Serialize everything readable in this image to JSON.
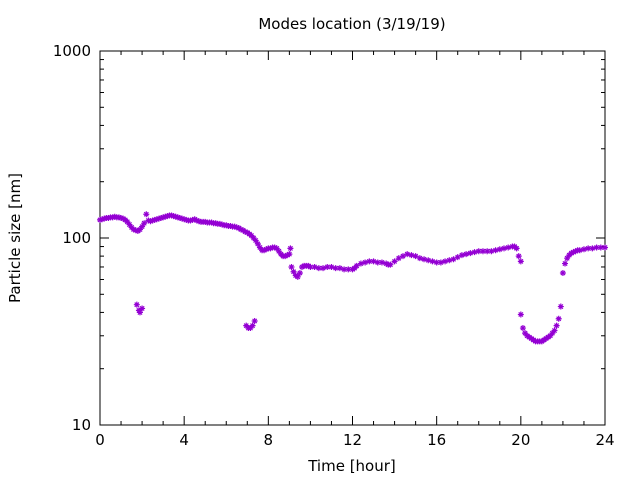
{
  "chart_data": {
    "type": "scatter",
    "title": "Modes location (3/19/19)",
    "xlabel": "Time [hour]",
    "ylabel": "Particle size [nm]",
    "xlim": [
      0,
      24
    ],
    "ylim": [
      10,
      1000
    ],
    "y_scale": "log",
    "grid": false,
    "legend": "none",
    "series_color": "#9400d3",
    "x_ticks": [
      0,
      4,
      8,
      12,
      16,
      20,
      24
    ],
    "x_tick_labels": [
      "0",
      "4",
      "8",
      "12",
      "16",
      "20",
      "24"
    ],
    "y_ticks": [
      10,
      100,
      1000
    ],
    "y_tick_labels": [
      "10",
      "100",
      "1000"
    ],
    "series": [
      {
        "points": [
          [
            0.0,
            125
          ],
          [
            0.1,
            126
          ],
          [
            0.2,
            127
          ],
          [
            0.3,
            128
          ],
          [
            0.4,
            128
          ],
          [
            0.5,
            129
          ],
          [
            0.6,
            129
          ],
          [
            0.7,
            130
          ],
          [
            0.8,
            129
          ],
          [
            0.9,
            129
          ],
          [
            1.0,
            128
          ],
          [
            1.1,
            127
          ],
          [
            1.2,
            125
          ],
          [
            1.3,
            122
          ],
          [
            1.4,
            118
          ],
          [
            1.5,
            114
          ],
          [
            1.6,
            111
          ],
          [
            1.7,
            110
          ],
          [
            1.8,
            109
          ],
          [
            1.9,
            111
          ],
          [
            2.0,
            115
          ],
          [
            2.1,
            120
          ],
          [
            2.2,
            134
          ],
          [
            2.3,
            124
          ],
          [
            2.4,
            123
          ],
          [
            2.5,
            124
          ],
          [
            2.6,
            125
          ],
          [
            2.7,
            126
          ],
          [
            2.8,
            127
          ],
          [
            2.9,
            128
          ],
          [
            3.0,
            129
          ],
          [
            3.1,
            130
          ],
          [
            3.2,
            131
          ],
          [
            3.3,
            132
          ],
          [
            3.4,
            132
          ],
          [
            3.5,
            131
          ],
          [
            3.6,
            130
          ],
          [
            3.7,
            129
          ],
          [
            3.8,
            128
          ],
          [
            3.9,
            127
          ],
          [
            4.0,
            126
          ],
          [
            4.1,
            125
          ],
          [
            4.2,
            124
          ],
          [
            4.3,
            124
          ],
          [
            4.4,
            125
          ],
          [
            4.5,
            126
          ],
          [
            4.6,
            124
          ],
          [
            4.7,
            123
          ],
          [
            4.8,
            122
          ],
          [
            4.9,
            122
          ],
          [
            5.0,
            122
          ],
          [
            5.1,
            121
          ],
          [
            5.2,
            121
          ],
          [
            5.3,
            121
          ],
          [
            5.4,
            120
          ],
          [
            5.5,
            120
          ],
          [
            5.6,
            119
          ],
          [
            5.7,
            119
          ],
          [
            5.8,
            118
          ],
          [
            5.9,
            117
          ],
          [
            6.0,
            117
          ],
          [
            6.1,
            116
          ],
          [
            6.2,
            116
          ],
          [
            6.3,
            115
          ],
          [
            6.4,
            115
          ],
          [
            6.5,
            114
          ],
          [
            6.6,
            113
          ],
          [
            6.7,
            111
          ],
          [
            6.8,
            110
          ],
          [
            6.9,
            108
          ],
          [
            7.0,
            107
          ],
          [
            7.1,
            105
          ],
          [
            7.2,
            103
          ],
          [
            7.3,
            100
          ],
          [
            7.4,
            97
          ],
          [
            7.5,
            93
          ],
          [
            7.6,
            89
          ],
          [
            7.7,
            86
          ],
          [
            7.8,
            86
          ],
          [
            7.9,
            87
          ],
          [
            8.0,
            88
          ],
          [
            8.1,
            88
          ],
          [
            8.2,
            89
          ],
          [
            8.3,
            89
          ],
          [
            8.4,
            88
          ],
          [
            8.5,
            85
          ],
          [
            8.6,
            82
          ],
          [
            8.7,
            80
          ],
          [
            8.8,
            80
          ],
          [
            8.9,
            81
          ],
          [
            9.0,
            82
          ],
          [
            9.05,
            88
          ],
          [
            9.1,
            70
          ],
          [
            9.2,
            66
          ],
          [
            9.3,
            63
          ],
          [
            9.4,
            62
          ],
          [
            9.5,
            65
          ],
          [
            9.6,
            70
          ],
          [
            9.7,
            71
          ],
          [
            9.8,
            71
          ],
          [
            9.9,
            71
          ],
          [
            10.0,
            70
          ],
          [
            10.2,
            70
          ],
          [
            10.4,
            69
          ],
          [
            10.6,
            69
          ],
          [
            10.8,
            70
          ],
          [
            11.0,
            70
          ],
          [
            11.2,
            69
          ],
          [
            11.4,
            69
          ],
          [
            11.6,
            68
          ],
          [
            11.8,
            68
          ],
          [
            12.0,
            68
          ],
          [
            12.1,
            69
          ],
          [
            12.2,
            71
          ],
          [
            12.4,
            73
          ],
          [
            12.6,
            74
          ],
          [
            12.8,
            75
          ],
          [
            13.0,
            75
          ],
          [
            13.2,
            74
          ],
          [
            13.4,
            74
          ],
          [
            13.6,
            73
          ],
          [
            13.7,
            72
          ],
          [
            13.8,
            72
          ],
          [
            14.0,
            75
          ],
          [
            14.2,
            78
          ],
          [
            14.4,
            80
          ],
          [
            14.6,
            82
          ],
          [
            14.8,
            81
          ],
          [
            15.0,
            80
          ],
          [
            15.2,
            78
          ],
          [
            15.4,
            77
          ],
          [
            15.6,
            76
          ],
          [
            15.8,
            75
          ],
          [
            16.0,
            74
          ],
          [
            16.2,
            74
          ],
          [
            16.4,
            75
          ],
          [
            16.6,
            76
          ],
          [
            16.8,
            77
          ],
          [
            17.0,
            79
          ],
          [
            17.2,
            81
          ],
          [
            17.4,
            82
          ],
          [
            17.6,
            83
          ],
          [
            17.8,
            84
          ],
          [
            18.0,
            85
          ],
          [
            18.2,
            85
          ],
          [
            18.4,
            85
          ],
          [
            18.6,
            85
          ],
          [
            18.8,
            86
          ],
          [
            19.0,
            87
          ],
          [
            19.2,
            88
          ],
          [
            19.4,
            89
          ],
          [
            19.6,
            90
          ],
          [
            19.7,
            90
          ],
          [
            19.8,
            88
          ],
          [
            19.9,
            80
          ],
          [
            20.0,
            75
          ],
          [
            20.0,
            39
          ],
          [
            20.1,
            33
          ],
          [
            20.2,
            31
          ],
          [
            20.3,
            30
          ],
          [
            20.4,
            29.5
          ],
          [
            20.5,
            29
          ],
          [
            20.6,
            28.5
          ],
          [
            20.7,
            28
          ],
          [
            20.8,
            28
          ],
          [
            20.9,
            28
          ],
          [
            21.0,
            28
          ],
          [
            21.1,
            28.5
          ],
          [
            21.2,
            29
          ],
          [
            21.3,
            29.5
          ],
          [
            21.4,
            30
          ],
          [
            21.5,
            31
          ],
          [
            21.6,
            32
          ],
          [
            21.7,
            34
          ],
          [
            21.8,
            37
          ],
          [
            21.9,
            43
          ],
          [
            22.0,
            65
          ],
          [
            22.1,
            73
          ],
          [
            22.2,
            78
          ],
          [
            22.3,
            81
          ],
          [
            22.4,
            83
          ],
          [
            22.5,
            84
          ],
          [
            22.6,
            85
          ],
          [
            22.7,
            86
          ],
          [
            22.8,
            86
          ],
          [
            23.0,
            87
          ],
          [
            23.2,
            88
          ],
          [
            23.4,
            88
          ],
          [
            23.6,
            89
          ],
          [
            23.8,
            89
          ],
          [
            24.0,
            89
          ],
          [
            1.75,
            44
          ],
          [
            1.85,
            41
          ],
          [
            1.9,
            40
          ],
          [
            2.0,
            42
          ],
          [
            6.95,
            34
          ],
          [
            7.05,
            33
          ],
          [
            7.15,
            33
          ],
          [
            7.25,
            34
          ],
          [
            7.35,
            36
          ]
        ]
      }
    ]
  }
}
